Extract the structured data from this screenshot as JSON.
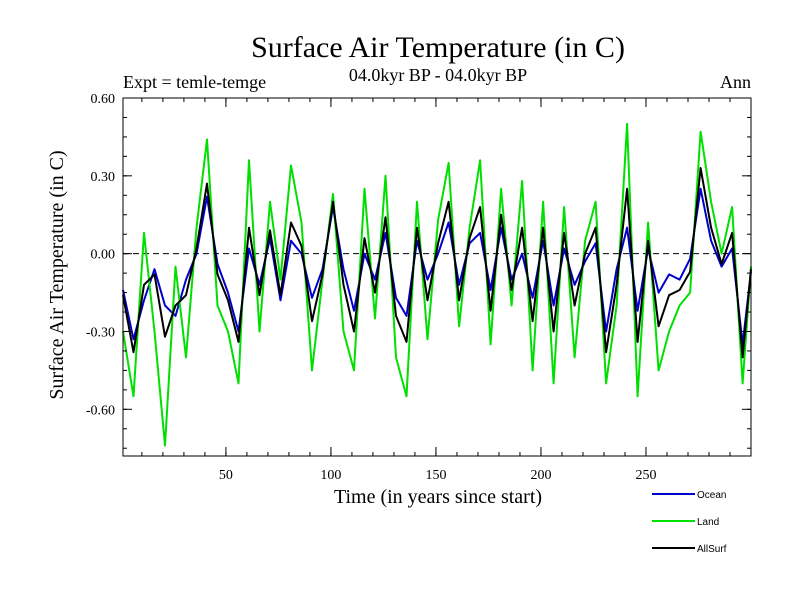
{
  "chart_data": {
    "type": "line",
    "title": "Surface Air Temperature (in C)",
    "subtitle": "04.0kyr BP - 04.0kyr BP",
    "expt_label": "Expt = temle-temge",
    "period_label": "Ann",
    "xlabel": "Time (in years since start)",
    "ylabel": "Surface Air Temperature (in C)",
    "xlim": [
      1,
      300
    ],
    "ylim": [
      -0.78,
      0.6
    ],
    "xticks": [
      50,
      100,
      150,
      200,
      250
    ],
    "xtick_labels": [
      "50",
      "100",
      "150",
      "200",
      "250"
    ],
    "yticks": [
      0.6,
      0.3,
      0.0,
      -0.3,
      -0.6
    ],
    "ytick_labels": [
      "0.60",
      "0.30",
      "0.00",
      "-0.30",
      "-0.60"
    ],
    "zero_line": "dashed",
    "legend_position": "bottom-right",
    "colors": {
      "Ocean": "#0000cc",
      "Land": "#00e000",
      "AllSurf": "#000000"
    },
    "series": [
      {
        "name": "Ocean",
        "x": [
          1,
          6,
          11,
          16,
          21,
          26,
          31,
          36,
          41,
          46,
          51,
          56,
          61,
          66,
          71,
          76,
          81,
          86,
          91,
          96,
          101,
          106,
          111,
          116,
          121,
          126,
          131,
          136,
          141,
          146,
          151,
          156,
          161,
          166,
          171,
          176,
          181,
          186,
          191,
          196,
          201,
          206,
          211,
          216,
          221,
          226,
          231,
          236,
          241,
          246,
          251,
          256,
          261,
          266,
          271,
          276,
          281,
          286,
          291,
          296,
          300
        ],
        "values": [
          -0.14,
          -0.33,
          -0.18,
          -0.06,
          -0.2,
          -0.24,
          -0.1,
          0.0,
          0.22,
          -0.04,
          -0.15,
          -0.3,
          0.02,
          -0.12,
          0.06,
          -0.18,
          0.05,
          0.0,
          -0.17,
          -0.06,
          0.18,
          -0.06,
          -0.22,
          0.0,
          -0.1,
          0.08,
          -0.17,
          -0.24,
          0.05,
          -0.1,
          0.0,
          0.12,
          -0.12,
          0.04,
          0.08,
          -0.14,
          0.1,
          -0.1,
          0.0,
          -0.17,
          0.05,
          -0.2,
          0.02,
          -0.12,
          -0.03,
          0.04,
          -0.3,
          -0.06,
          0.1,
          -0.22,
          0.02,
          -0.15,
          -0.08,
          -0.1,
          -0.02,
          0.25,
          0.05,
          -0.05,
          0.02,
          -0.35,
          -0.07
        ]
      },
      {
        "name": "Land",
        "x": [
          1,
          6,
          11,
          16,
          21,
          26,
          31,
          36,
          41,
          46,
          51,
          56,
          61,
          66,
          71,
          76,
          81,
          86,
          91,
          96,
          101,
          106,
          111,
          116,
          121,
          126,
          131,
          136,
          141,
          146,
          151,
          156,
          161,
          166,
          171,
          176,
          181,
          186,
          191,
          196,
          201,
          206,
          211,
          216,
          221,
          226,
          231,
          236,
          241,
          246,
          251,
          256,
          261,
          266,
          271,
          276,
          281,
          286,
          291,
          296,
          300
        ],
        "values": [
          -0.3,
          -0.55,
          0.08,
          -0.3,
          -0.74,
          -0.05,
          -0.4,
          0.1,
          0.44,
          -0.2,
          -0.3,
          -0.5,
          0.36,
          -0.3,
          0.2,
          -0.1,
          0.34,
          0.12,
          -0.45,
          -0.1,
          0.23,
          -0.3,
          -0.45,
          0.25,
          -0.25,
          0.3,
          -0.4,
          -0.55,
          0.2,
          -0.33,
          0.13,
          0.35,
          -0.28,
          0.1,
          0.36,
          -0.35,
          0.25,
          -0.2,
          0.28,
          -0.45,
          0.2,
          -0.5,
          0.18,
          -0.4,
          0.05,
          0.2,
          -0.5,
          -0.2,
          0.5,
          -0.55,
          0.12,
          -0.45,
          -0.3,
          -0.2,
          -0.15,
          0.47,
          0.2,
          0.0,
          0.18,
          -0.5,
          -0.05
        ]
      },
      {
        "name": "AllSurf",
        "x": [
          1,
          6,
          11,
          16,
          21,
          26,
          31,
          36,
          41,
          46,
          51,
          56,
          61,
          66,
          71,
          76,
          81,
          86,
          91,
          96,
          101,
          106,
          111,
          116,
          121,
          126,
          131,
          136,
          141,
          146,
          151,
          156,
          161,
          166,
          171,
          176,
          181,
          186,
          191,
          196,
          201,
          206,
          211,
          216,
          221,
          226,
          231,
          236,
          241,
          246,
          251,
          256,
          261,
          266,
          271,
          276,
          281,
          286,
          291,
          296,
          300
        ],
        "values": [
          -0.16,
          -0.38,
          -0.12,
          -0.08,
          -0.32,
          -0.2,
          -0.16,
          0.02,
          0.27,
          -0.08,
          -0.18,
          -0.34,
          0.1,
          -0.16,
          0.09,
          -0.16,
          0.12,
          0.03,
          -0.26,
          -0.08,
          0.2,
          -0.12,
          -0.3,
          0.06,
          -0.15,
          0.14,
          -0.24,
          -0.34,
          0.1,
          -0.18,
          0.04,
          0.2,
          -0.18,
          0.06,
          0.18,
          -0.22,
          0.15,
          -0.14,
          0.1,
          -0.26,
          0.1,
          -0.3,
          0.08,
          -0.2,
          0.0,
          0.1,
          -0.38,
          -0.12,
          0.25,
          -0.34,
          0.05,
          -0.28,
          -0.16,
          -0.14,
          -0.07,
          0.33,
          0.1,
          -0.04,
          0.08,
          -0.4,
          -0.06
        ]
      }
    ]
  }
}
